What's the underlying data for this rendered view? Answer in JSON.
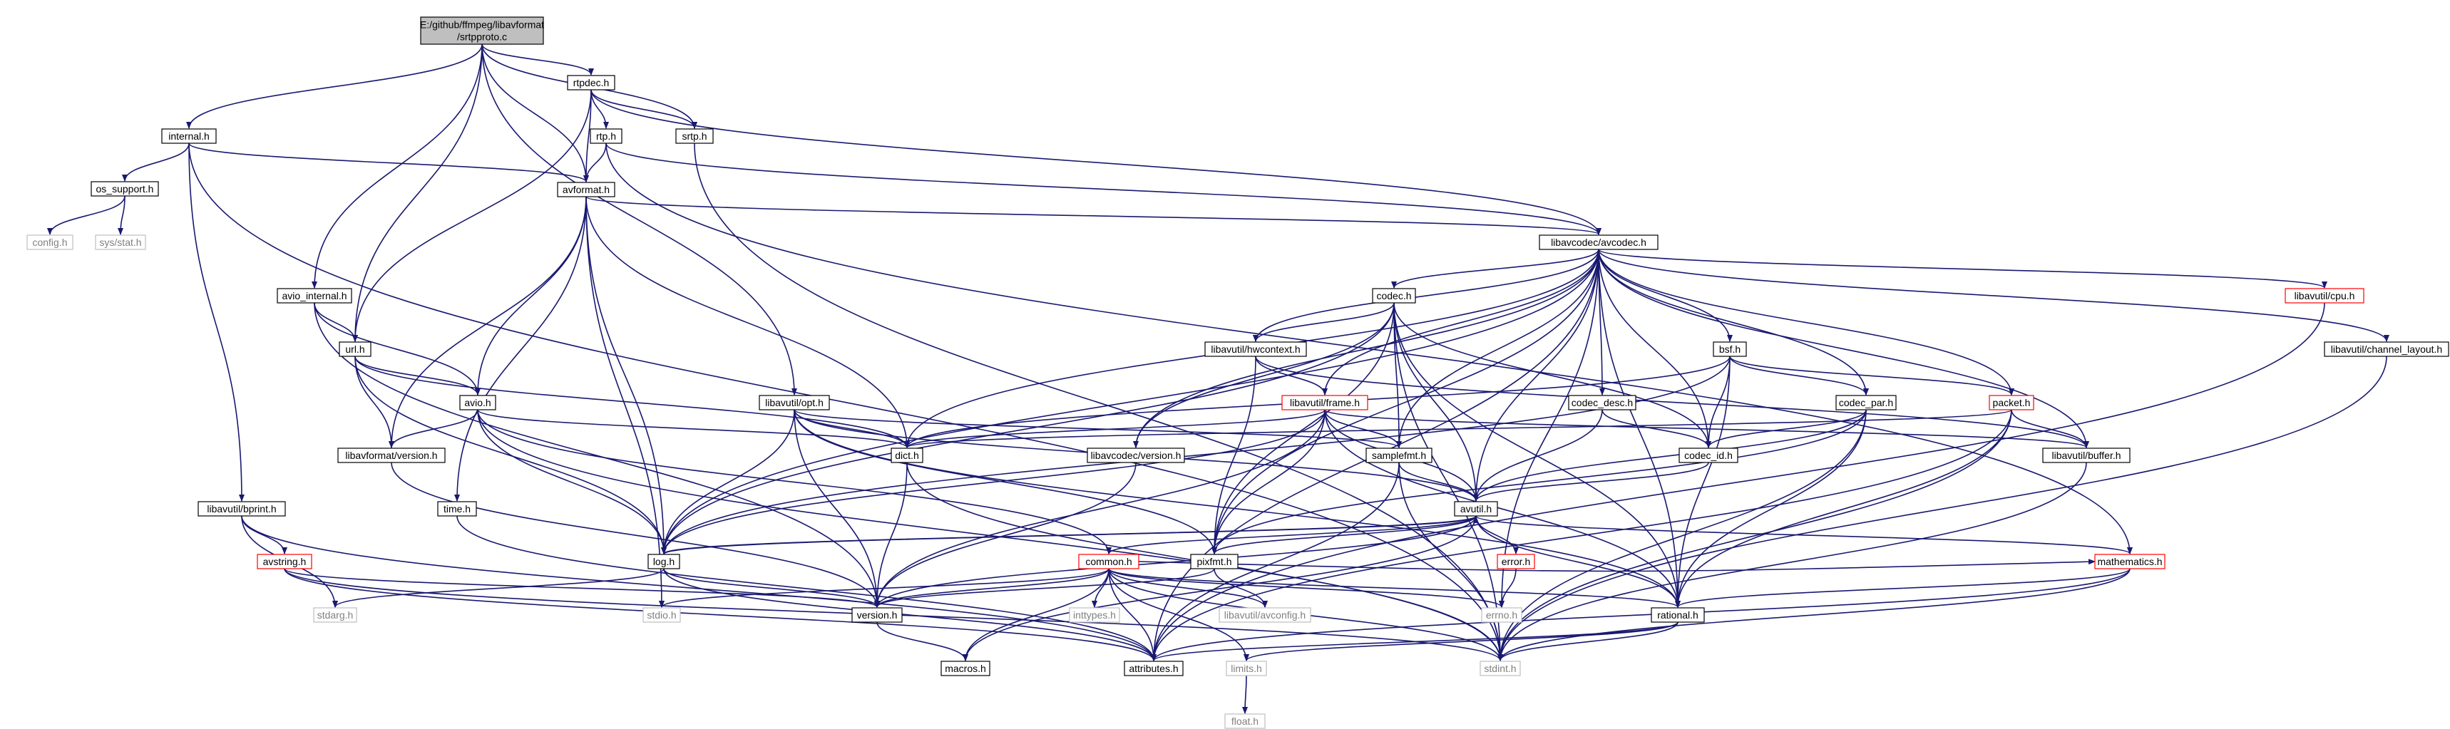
{
  "colors": {
    "edge": "#191970",
    "node_border": "#000000",
    "node_border_red": "#ff0000",
    "node_border_gray": "#bfbfbf",
    "root_fill": "#bfbfbf",
    "text": "#000000",
    "text_gray": "#808080"
  },
  "nodes": [
    {
      "id": "root",
      "lines": [
        "E:/github/ffmpeg/libavformat",
        "/srtpproto.c"
      ],
      "style": "root"
    },
    {
      "id": "rtpdec_h",
      "lines": [
        "rtpdec.h"
      ],
      "style": "normal"
    },
    {
      "id": "srtp_h",
      "lines": [
        "srtp.h"
      ],
      "style": "normal"
    },
    {
      "id": "rtp_h",
      "lines": [
        "rtp.h"
      ],
      "style": "normal"
    },
    {
      "id": "internal_h",
      "lines": [
        "internal.h"
      ],
      "style": "normal"
    },
    {
      "id": "os_support_h",
      "lines": [
        "os_support.h"
      ],
      "style": "normal"
    },
    {
      "id": "config_h",
      "lines": [
        "config.h"
      ],
      "style": "gray"
    },
    {
      "id": "sys_stat_h",
      "lines": [
        "sys/stat.h"
      ],
      "style": "gray"
    },
    {
      "id": "avformat_h",
      "lines": [
        "avformat.h"
      ],
      "style": "normal"
    },
    {
      "id": "avcodec_h",
      "lines": [
        "libavcodec/avcodec.h"
      ],
      "style": "normal"
    },
    {
      "id": "avio_internal_h",
      "lines": [
        "avio_internal.h"
      ],
      "style": "normal"
    },
    {
      "id": "url_h",
      "lines": [
        "url.h"
      ],
      "style": "normal"
    },
    {
      "id": "avio_h",
      "lines": [
        "avio.h"
      ],
      "style": "normal"
    },
    {
      "id": "lavf_version_h",
      "lines": [
        "libavformat/version.h"
      ],
      "style": "normal"
    },
    {
      "id": "opt_h",
      "lines": [
        "libavutil/opt.h"
      ],
      "style": "normal"
    },
    {
      "id": "codec_h",
      "lines": [
        "codec.h"
      ],
      "style": "normal"
    },
    {
      "id": "hwcontext_h",
      "lines": [
        "libavutil/hwcontext.h"
      ],
      "style": "normal"
    },
    {
      "id": "frame_h",
      "lines": [
        "libavutil/frame.h"
      ],
      "style": "red"
    },
    {
      "id": "bsf_h",
      "lines": [
        "bsf.h"
      ],
      "style": "normal"
    },
    {
      "id": "codec_desc_h",
      "lines": [
        "codec_desc.h"
      ],
      "style": "normal"
    },
    {
      "id": "codec_par_h",
      "lines": [
        "codec_par.h"
      ],
      "style": "normal"
    },
    {
      "id": "packet_h",
      "lines": [
        "packet.h"
      ],
      "style": "red"
    },
    {
      "id": "cpu_h",
      "lines": [
        "libavutil/cpu.h"
      ],
      "style": "red"
    },
    {
      "id": "channel_layout_h",
      "lines": [
        "libavutil/channel_layout.h"
      ],
      "style": "normal"
    },
    {
      "id": "dict_h",
      "lines": [
        "dict.h"
      ],
      "style": "normal"
    },
    {
      "id": "lavc_version_h",
      "lines": [
        "libavcodec/version.h"
      ],
      "style": "normal"
    },
    {
      "id": "samplefmt_h",
      "lines": [
        "samplefmt.h"
      ],
      "style": "normal"
    },
    {
      "id": "codec_id_h",
      "lines": [
        "codec_id.h"
      ],
      "style": "normal"
    },
    {
      "id": "buffer_h",
      "lines": [
        "libavutil/buffer.h"
      ],
      "style": "normal"
    },
    {
      "id": "avutil_h",
      "lines": [
        "avutil.h"
      ],
      "style": "normal"
    },
    {
      "id": "time_h",
      "lines": [
        "time.h"
      ],
      "style": "normal"
    },
    {
      "id": "bprint_h",
      "lines": [
        "libavutil/bprint.h"
      ],
      "style": "normal"
    },
    {
      "id": "avstring_h",
      "lines": [
        "avstring.h"
      ],
      "style": "red"
    },
    {
      "id": "log_h",
      "lines": [
        "log.h"
      ],
      "style": "normal"
    },
    {
      "id": "pixfmt_h",
      "lines": [
        "pixfmt.h"
      ],
      "style": "normal"
    },
    {
      "id": "common_h",
      "lines": [
        "common.h"
      ],
      "style": "red"
    },
    {
      "id": "error_h",
      "lines": [
        "error.h"
      ],
      "style": "red"
    },
    {
      "id": "mathematics_h",
      "lines": [
        "mathematics.h"
      ],
      "style": "red"
    },
    {
      "id": "stdarg_h",
      "lines": [
        "stdarg.h"
      ],
      "style": "gray"
    },
    {
      "id": "stdio_h",
      "lines": [
        "stdio.h"
      ],
      "style": "gray"
    },
    {
      "id": "version_h",
      "lines": [
        "version.h"
      ],
      "style": "normal"
    },
    {
      "id": "inttypes_h",
      "lines": [
        "inttypes.h"
      ],
      "style": "gray"
    },
    {
      "id": "avconfig_h",
      "lines": [
        "libavutil/avconfig.h"
      ],
      "style": "gray"
    },
    {
      "id": "errno_h",
      "lines": [
        "errno.h"
      ],
      "style": "gray"
    },
    {
      "id": "rational_h",
      "lines": [
        "rational.h"
      ],
      "style": "normal"
    },
    {
      "id": "macros_h",
      "lines": [
        "macros.h"
      ],
      "style": "normal"
    },
    {
      "id": "attributes_h",
      "lines": [
        "attributes.h"
      ],
      "style": "normal"
    },
    {
      "id": "limits_h",
      "lines": [
        "limits.h"
      ],
      "style": "gray"
    },
    {
      "id": "stdint_h",
      "lines": [
        "stdint.h"
      ],
      "style": "gray"
    },
    {
      "id": "float_h",
      "lines": [
        "float.h"
      ],
      "style": "gray"
    }
  ],
  "edges": [
    [
      "root",
      "rtpdec_h"
    ],
    [
      "root",
      "srtp_h"
    ],
    [
      "root",
      "internal_h"
    ],
    [
      "root",
      "avio_internal_h"
    ],
    [
      "root",
      "url_h"
    ],
    [
      "root",
      "avformat_h"
    ],
    [
      "root",
      "opt_h"
    ],
    [
      "rtpdec_h",
      "rtp_h"
    ],
    [
      "rtpdec_h",
      "srtp_h"
    ],
    [
      "rtpdec_h",
      "avformat_h"
    ],
    [
      "rtpdec_h",
      "url_h"
    ],
    [
      "rtpdec_h",
      "avcodec_h"
    ],
    [
      "srtp_h",
      "stdint_h"
    ],
    [
      "rtp_h",
      "avformat_h"
    ],
    [
      "rtp_h",
      "avcodec_h"
    ],
    [
      "rtp_h",
      "mathematics_h"
    ],
    [
      "internal_h",
      "os_support_h"
    ],
    [
      "internal_h",
      "avformat_h"
    ],
    [
      "internal_h",
      "bprint_h"
    ],
    [
      "internal_h",
      "stdint_h"
    ],
    [
      "os_support_h",
      "config_h"
    ],
    [
      "os_support_h",
      "sys_stat_h"
    ],
    [
      "avformat_h",
      "avcodec_h"
    ],
    [
      "avformat_h",
      "avio_h"
    ],
    [
      "avformat_h",
      "lavf_version_h"
    ],
    [
      "avformat_h",
      "time_h"
    ],
    [
      "avformat_h",
      "stdio_h"
    ],
    [
      "avformat_h",
      "dict_h"
    ],
    [
      "avformat_h",
      "log_h"
    ],
    [
      "avio_internal_h",
      "url_h"
    ],
    [
      "avio_internal_h",
      "avio_h"
    ],
    [
      "avio_internal_h",
      "version_h"
    ],
    [
      "url_h",
      "avio_h"
    ],
    [
      "url_h",
      "lavf_version_h"
    ],
    [
      "url_h",
      "dict_h"
    ],
    [
      "url_h",
      "log_h"
    ],
    [
      "avio_h",
      "lavf_version_h"
    ],
    [
      "avio_h",
      "dict_h"
    ],
    [
      "avio_h",
      "log_h"
    ],
    [
      "avio_h",
      "common_h"
    ],
    [
      "avio_h",
      "stdint_h"
    ],
    [
      "lavf_version_h",
      "version_h"
    ],
    [
      "opt_h",
      "dict_h"
    ],
    [
      "opt_h",
      "log_h"
    ],
    [
      "opt_h",
      "samplefmt_h"
    ],
    [
      "opt_h",
      "pixfmt_h"
    ],
    [
      "opt_h",
      "avutil_h"
    ],
    [
      "opt_h",
      "rational_h"
    ],
    [
      "opt_h",
      "version_h"
    ],
    [
      "avcodec_h",
      "codec_h"
    ],
    [
      "avcodec_h",
      "bsf_h"
    ],
    [
      "avcodec_h",
      "codec_desc_h"
    ],
    [
      "avcodec_h",
      "codec_par_h"
    ],
    [
      "avcodec_h",
      "packet_h"
    ],
    [
      "avcodec_h",
      "cpu_h"
    ],
    [
      "avcodec_h",
      "channel_layout_h"
    ],
    [
      "avcodec_h",
      "hwcontext_h"
    ],
    [
      "avcodec_h",
      "frame_h"
    ],
    [
      "avcodec_h",
      "dict_h"
    ],
    [
      "avcodec_h",
      "lavc_version_h"
    ],
    [
      "avcodec_h",
      "samplefmt_h"
    ],
    [
      "avcodec_h",
      "codec_id_h"
    ],
    [
      "avcodec_h",
      "buffer_h"
    ],
    [
      "avcodec_h",
      "avutil_h"
    ],
    [
      "avcodec_h",
      "log_h"
    ],
    [
      "avcodec_h",
      "pixfmt_h"
    ],
    [
      "avcodec_h",
      "attributes_h"
    ],
    [
      "avcodec_h",
      "rational_h"
    ],
    [
      "avcodec_h",
      "errno_h"
    ],
    [
      "codec_h",
      "hwcontext_h"
    ],
    [
      "codec_h",
      "lavc_version_h"
    ],
    [
      "codec_h",
      "samplefmt_h"
    ],
    [
      "codec_h",
      "codec_id_h"
    ],
    [
      "codec_h",
      "avutil_h"
    ],
    [
      "codec_h",
      "log_h"
    ],
    [
      "codec_h",
      "pixfmt_h"
    ],
    [
      "codec_h",
      "rational_h"
    ],
    [
      "codec_h",
      "stdint_h"
    ],
    [
      "hwcontext_h",
      "frame_h"
    ],
    [
      "hwcontext_h",
      "buffer_h"
    ],
    [
      "hwcontext_h",
      "pixfmt_h"
    ],
    [
      "frame_h",
      "dict_h"
    ],
    [
      "frame_h",
      "samplefmt_h"
    ],
    [
      "frame_h",
      "buffer_h"
    ],
    [
      "frame_h",
      "avutil_h"
    ],
    [
      "frame_h",
      "log_h"
    ],
    [
      "frame_h",
      "pixfmt_h"
    ],
    [
      "frame_h",
      "rational_h"
    ],
    [
      "frame_h",
      "version_h"
    ],
    [
      "bsf_h",
      "dict_h"
    ],
    [
      "bsf_h",
      "codec_id_h"
    ],
    [
      "bsf_h",
      "codec_par_h"
    ],
    [
      "bsf_h",
      "packet_h"
    ],
    [
      "bsf_h",
      "log_h"
    ],
    [
      "bsf_h",
      "rational_h"
    ],
    [
      "codec_desc_h",
      "codec_id_h"
    ],
    [
      "codec_desc_h",
      "avutil_h"
    ],
    [
      "codec_par_h",
      "codec_id_h"
    ],
    [
      "codec_par_h",
      "avutil_h"
    ],
    [
      "codec_par_h",
      "pixfmt_h"
    ],
    [
      "codec_par_h",
      "rational_h"
    ],
    [
      "codec_par_h",
      "stdint_h"
    ],
    [
      "packet_h",
      "dict_h"
    ],
    [
      "packet_h",
      "buffer_h"
    ],
    [
      "packet_h",
      "attributes_h"
    ],
    [
      "packet_h",
      "rational_h"
    ],
    [
      "packet_h",
      "stdint_h"
    ],
    [
      "cpu_h",
      "attributes_h"
    ],
    [
      "channel_layout_h",
      "stdint_h"
    ],
    [
      "dict_h",
      "version_h"
    ],
    [
      "dict_h",
      "stdint_h"
    ],
    [
      "lavc_version_h",
      "version_h"
    ],
    [
      "samplefmt_h",
      "avutil_h"
    ],
    [
      "samplefmt_h",
      "attributes_h"
    ],
    [
      "samplefmt_h",
      "stdint_h"
    ],
    [
      "codec_id_h",
      "avutil_h"
    ],
    [
      "buffer_h",
      "stdint_h"
    ],
    [
      "avutil_h",
      "log_h"
    ],
    [
      "avutil_h",
      "pixfmt_h"
    ],
    [
      "avutil_h",
      "common_h"
    ],
    [
      "avutil_h",
      "error_h"
    ],
    [
      "avutil_h",
      "mathematics_h"
    ],
    [
      "avutil_h",
      "rational_h"
    ],
    [
      "avutil_h",
      "version_h"
    ],
    [
      "avutil_h",
      "macros_h"
    ],
    [
      "time_h",
      "attributes_h"
    ],
    [
      "bprint_h",
      "avstring_h"
    ],
    [
      "bprint_h",
      "stdarg_h"
    ],
    [
      "bprint_h",
      "attributes_h"
    ],
    [
      "avstring_h",
      "attributes_h"
    ],
    [
      "avstring_h",
      "version_h"
    ],
    [
      "avstring_h",
      "stdint_h"
    ],
    [
      "log_h",
      "stdarg_h"
    ],
    [
      "log_h",
      "version_h"
    ],
    [
      "log_h",
      "avutil_h"
    ],
    [
      "log_h",
      "attributes_h"
    ],
    [
      "pixfmt_h",
      "avconfig_h"
    ],
    [
      "pixfmt_h",
      "version_h"
    ],
    [
      "common_h",
      "stdio_h"
    ],
    [
      "common_h",
      "inttypes_h"
    ],
    [
      "common_h",
      "errno_h"
    ],
    [
      "common_h",
      "version_h"
    ],
    [
      "common_h",
      "macros_h"
    ],
    [
      "common_h",
      "attributes_h"
    ],
    [
      "common_h",
      "limits_h"
    ],
    [
      "common_h",
      "stdint_h"
    ],
    [
      "common_h",
      "avconfig_h"
    ],
    [
      "common_h",
      "mathematics_h"
    ],
    [
      "common_h",
      "rational_h"
    ],
    [
      "error_h",
      "errno_h"
    ],
    [
      "mathematics_h",
      "rational_h"
    ],
    [
      "mathematics_h",
      "attributes_h"
    ],
    [
      "mathematics_h",
      "stdint_h"
    ],
    [
      "rational_h",
      "attributes_h"
    ],
    [
      "rational_h",
      "limits_h"
    ],
    [
      "rational_h",
      "stdint_h"
    ],
    [
      "version_h",
      "macros_h"
    ],
    [
      "limits_h",
      "float_h"
    ]
  ]
}
